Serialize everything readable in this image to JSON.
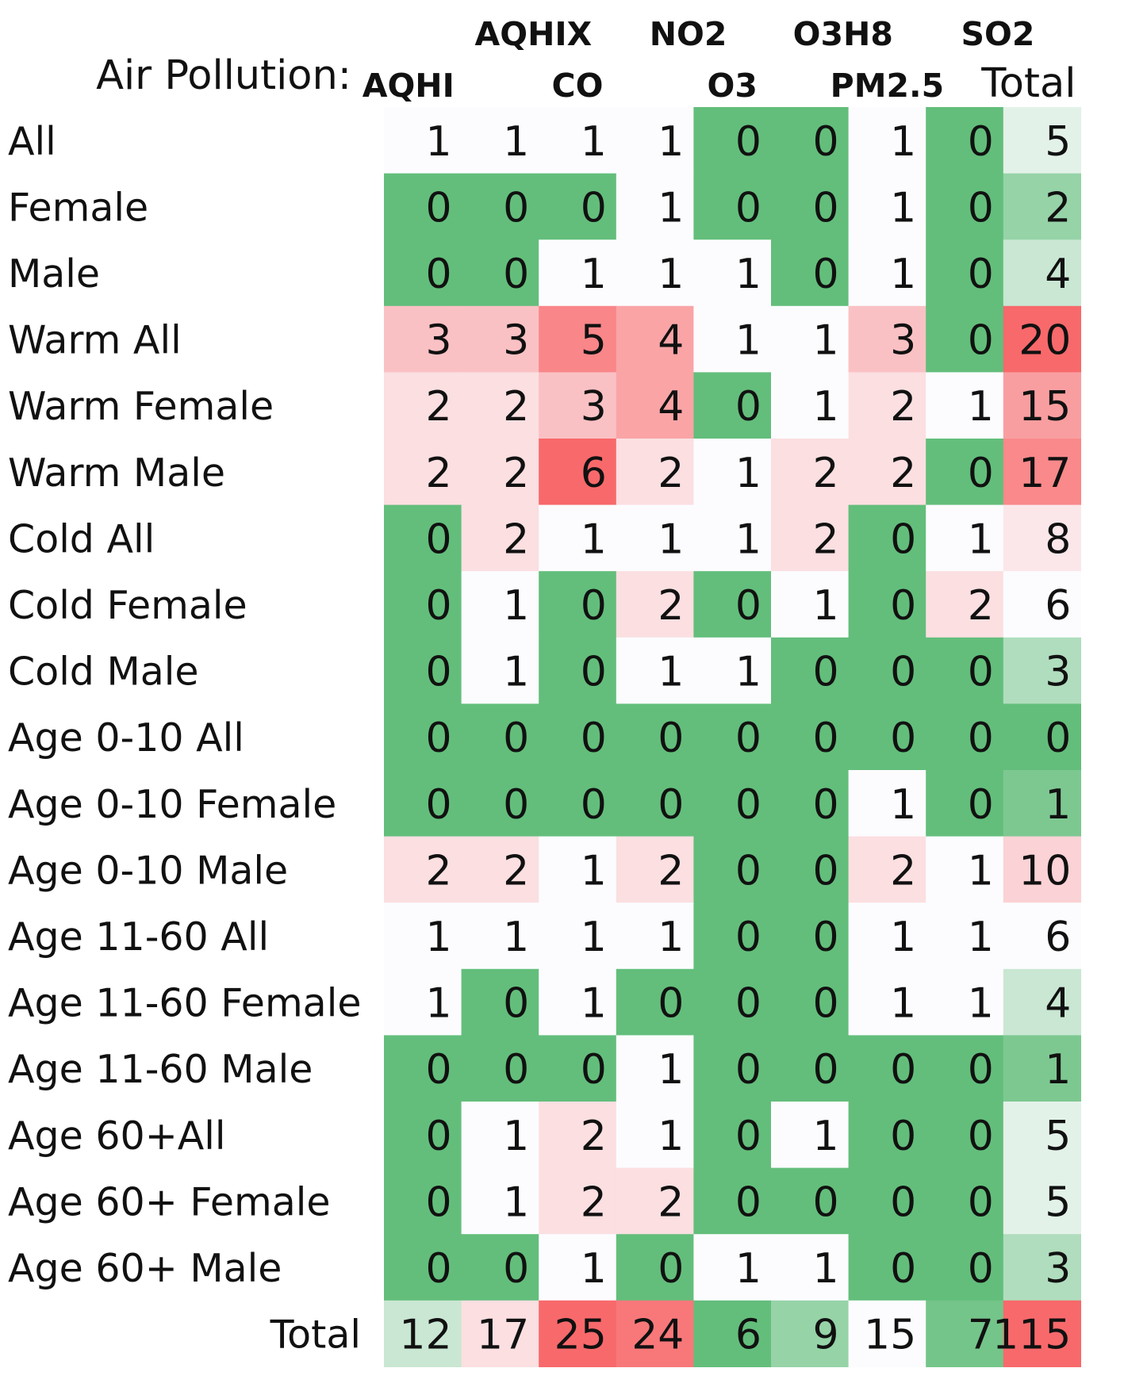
{
  "chart_data": {
    "type": "heatmap",
    "title": "Air Pollution:",
    "columns": [
      "AQHI",
      "AQHIX",
      "CO",
      "NO2",
      "O3",
      "O3H8",
      "PM2.5",
      "SO2",
      "Total"
    ],
    "rows": [
      "All",
      "Female",
      "Male",
      "Warm All",
      "Warm Female",
      "Warm Male",
      "Cold All",
      "Cold Female",
      "Cold Male",
      "Age 0-10 All",
      "Age 0-10 Female",
      "Age 0-10 Male",
      "Age 11-60 All",
      "Age 11-60 Female",
      "Age 11-60 Male",
      "Age 60+All",
      "Age 60+ Female",
      "Age 60+ Male",
      "Total"
    ],
    "values": [
      [
        1,
        1,
        1,
        1,
        0,
        0,
        1,
        0,
        5
      ],
      [
        0,
        0,
        0,
        1,
        0,
        0,
        1,
        0,
        2
      ],
      [
        0,
        0,
        1,
        1,
        1,
        0,
        1,
        0,
        4
      ],
      [
        3,
        3,
        5,
        4,
        1,
        1,
        3,
        0,
        20
      ],
      [
        2,
        2,
        3,
        4,
        0,
        1,
        2,
        1,
        15
      ],
      [
        2,
        2,
        6,
        2,
        1,
        2,
        2,
        0,
        17
      ],
      [
        0,
        2,
        1,
        1,
        1,
        2,
        0,
        1,
        8
      ],
      [
        0,
        1,
        0,
        2,
        0,
        1,
        0,
        2,
        6
      ],
      [
        0,
        1,
        0,
        1,
        1,
        0,
        0,
        0,
        3
      ],
      [
        0,
        0,
        0,
        0,
        0,
        0,
        0,
        0,
        0
      ],
      [
        0,
        0,
        0,
        0,
        0,
        0,
        1,
        0,
        1
      ],
      [
        2,
        2,
        1,
        2,
        0,
        0,
        2,
        1,
        10
      ],
      [
        1,
        1,
        1,
        1,
        0,
        0,
        1,
        1,
        6
      ],
      [
        1,
        0,
        1,
        0,
        0,
        0,
        1,
        1,
        4
      ],
      [
        0,
        0,
        0,
        1,
        0,
        0,
        0,
        0,
        1
      ],
      [
        0,
        1,
        2,
        1,
        0,
        1,
        0,
        0,
        5
      ],
      [
        0,
        1,
        2,
        2,
        0,
        0,
        0,
        0,
        5
      ],
      [
        0,
        0,
        1,
        0,
        1,
        1,
        0,
        0,
        3
      ],
      [
        12,
        17,
        25,
        24,
        6,
        9,
        15,
        7,
        115
      ]
    ],
    "colors": {
      "zero": "#63be7b",
      "mid": "#fcfcff",
      "high": "#f8696b"
    }
  }
}
